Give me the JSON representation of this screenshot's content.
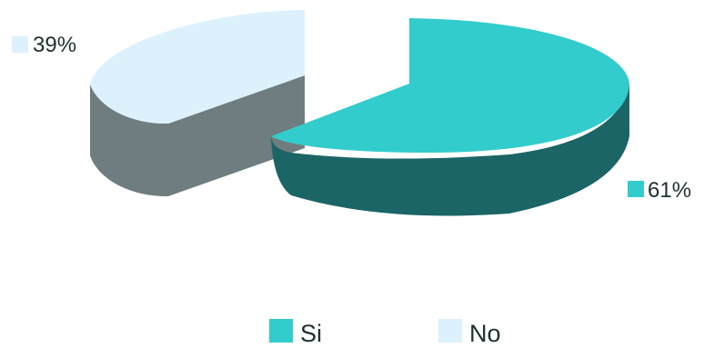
{
  "chart_data": {
    "type": "pie",
    "style": "3d-exploded",
    "categories": [
      "Si",
      "No"
    ],
    "values": [
      61,
      39
    ],
    "data_labels": [
      "61%",
      "39%"
    ],
    "colors": {
      "Si": {
        "top": "#33cccc",
        "side": "#1b6566"
      },
      "No": {
        "top": "#ddf1fd",
        "side": "#6f7c80"
      }
    },
    "legend": {
      "placement": "bottom",
      "entries": [
        "Si",
        "No"
      ]
    },
    "title": ""
  }
}
